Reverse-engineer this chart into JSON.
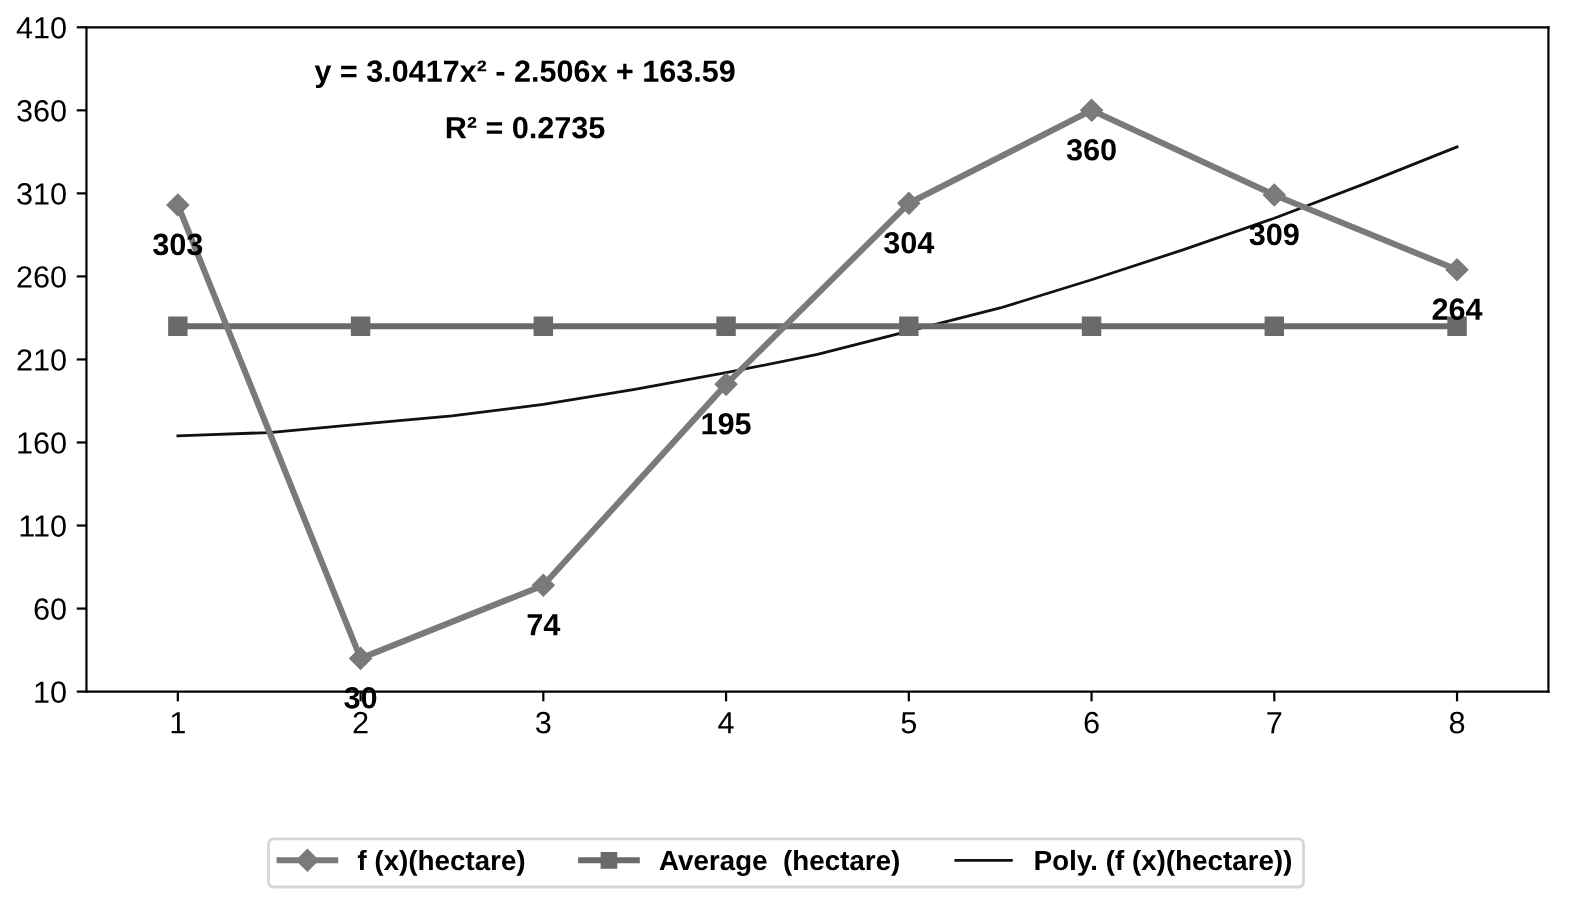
{
  "chart_data": {
    "type": "line",
    "xlim": [
      0.5,
      8.5
    ],
    "xticks": [
      1,
      2,
      3,
      4,
      5,
      6,
      7,
      8
    ],
    "ylim": [
      10,
      410
    ],
    "yticks": [
      10,
      60,
      110,
      160,
      210,
      260,
      310,
      360,
      410
    ],
    "grid": false,
    "legend": "bottom",
    "series": [
      {
        "name": "f (x)(hectare)",
        "color": "#7a7a7a",
        "marker": "diamond",
        "line_style": "solid",
        "data_labels": true,
        "x": [
          1,
          2,
          3,
          4,
          5,
          6,
          7,
          8
        ],
        "values": [
          303,
          30,
          74,
          195,
          304,
          360,
          309,
          264
        ]
      },
      {
        "name": "Average  (hectare)",
        "color": "#6a6a6a",
        "marker": "square",
        "line_style": "solid",
        "x": [
          1,
          2,
          3,
          4,
          5,
          6,
          7,
          8
        ],
        "values": [
          230,
          230,
          230,
          230,
          230,
          230,
          230,
          230
        ]
      },
      {
        "name": "Poly. (f (x)(hectare))",
        "color": "#111111",
        "marker": "none",
        "line_style": "solid",
        "x": [
          1,
          1.5,
          2,
          2.5,
          3,
          3.5,
          4,
          4.5,
          5,
          5.5,
          6,
          6.5,
          7,
          7.5,
          8
        ],
        "values": [
          164,
          166,
          171,
          176,
          183,
          192,
          202,
          213,
          227,
          241,
          258,
          276,
          295,
          316,
          338
        ]
      }
    ],
    "annotations": [
      "y = 3.0417x² - 2.506x + 163.59",
      "R² = 0.2735"
    ]
  }
}
